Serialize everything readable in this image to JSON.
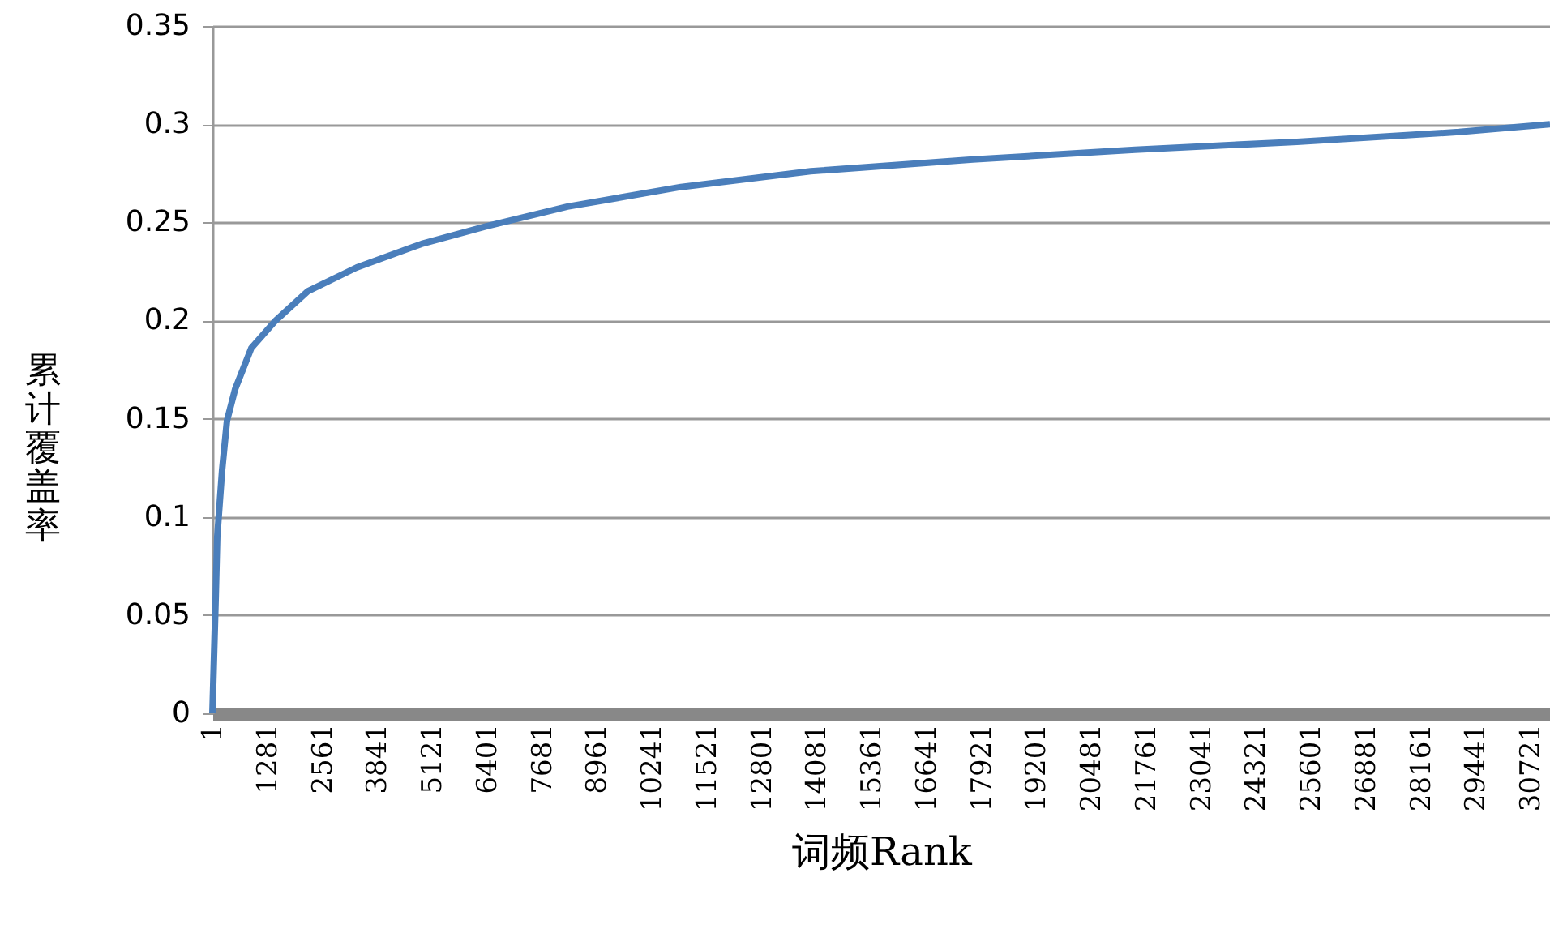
{
  "chart_data": {
    "type": "line",
    "xlabel": "词频Rank",
    "ylabel": "累计覆盖率",
    "x": [
      1,
      77,
      114,
      228,
      341,
      530,
      908,
      1474,
      2230,
      3363,
      4875,
      6386,
      8275,
      10919,
      13941,
      17719,
      21497,
      25275,
      29053,
      31170
    ],
    "values": [
      0,
      0.058,
      0.09,
      0.124,
      0.149,
      0.165,
      0.186,
      0.2,
      0.215,
      0.227,
      0.239,
      0.248,
      0.258,
      0.268,
      0.276,
      0.282,
      0.287,
      0.291,
      0.296,
      0.3
    ],
    "color": "#4a7ebb",
    "xlim": [
      1,
      31170
    ],
    "xticks": [
      1,
      1281,
      2561,
      3841,
      5121,
      6401,
      7681,
      8961,
      10241,
      11521,
      12801,
      14081,
      15361,
      16641,
      17921,
      19201,
      20481,
      21761,
      23041,
      24321,
      25601,
      26881,
      28161,
      29441,
      30721
    ],
    "ylim": [
      0,
      0.35
    ],
    "yticks": [
      0,
      0.05,
      0.1,
      0.15,
      0.2,
      0.25,
      0.3,
      0.35
    ],
    "grid": "y",
    "marker": "none",
    "line_style": "solid"
  }
}
